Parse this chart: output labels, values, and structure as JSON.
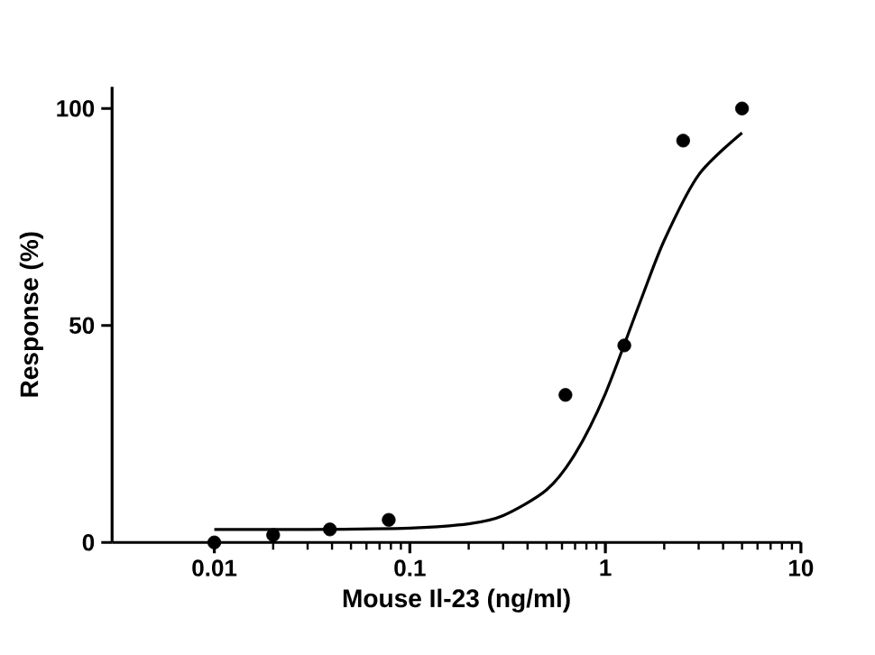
{
  "chart_data": {
    "type": "scatter",
    "xlabel": "Mouse Il-23 (ng/ml)",
    "ylabel": "Response (%)",
    "log": "x",
    "xlim": [
      0.003,
      10
    ],
    "ylim": [
      0,
      105
    ],
    "xticks": [
      0.01,
      0.1,
      1,
      10
    ],
    "yticks": [
      0,
      50,
      100
    ],
    "series": [
      {
        "color": "#000000",
        "marker": "circle",
        "x": [
          0.01,
          0.02,
          0.039,
          0.078,
          0.625,
          1.25,
          2.5,
          5
        ],
        "values": [
          0,
          1.7,
          3,
          5.2,
          34,
          45.4,
          92.6,
          100
        ]
      },
      {
        "type": "line",
        "color": "#000000",
        "marker": "none",
        "x": [
          0.01,
          0.03,
          0.1,
          0.2,
          0.3,
          0.5,
          0.7,
          1,
          1.5,
          2,
          3,
          5
        ],
        "values": [
          3,
          3,
          3.3,
          4.3,
          6.2,
          12.1,
          20.4,
          34.3,
          55.2,
          69.6,
          84.7,
          94.4
        ]
      }
    ]
  }
}
